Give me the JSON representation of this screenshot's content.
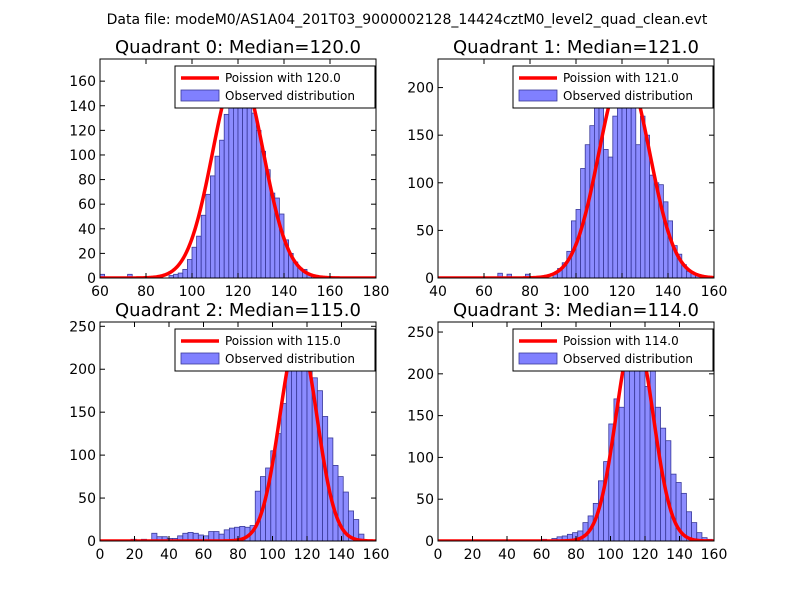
{
  "suptitle": "Data file: modeM0/AS1A04_201T03_9000002128_14424cztM0_level2_quad_clean.evt",
  "colors": {
    "line": "#ff0000",
    "bar": "#8080ff",
    "bar_edge": "#3a3a9a",
    "axes": "#000000"
  },
  "chart_data": [
    {
      "type": "bar",
      "title": "Quadrant 0: Median=120.0",
      "xlim": [
        60,
        180
      ],
      "ylim": [
        0,
        178
      ],
      "xticks": [
        60,
        80,
        100,
        120,
        140,
        160,
        180
      ],
      "yticks": [
        0,
        20,
        40,
        60,
        80,
        100,
        120,
        140,
        160
      ],
      "bin_width": 2,
      "legend": {
        "line_label": "Poission with 120.0",
        "bar_label": "Observed distribution",
        "position": "upper right"
      },
      "poisson": {
        "mean": 120.0,
        "peak": 170
      },
      "bins": [
        [
          60,
          3
        ],
        [
          72,
          3
        ],
        [
          84,
          1
        ],
        [
          90,
          2
        ],
        [
          92,
          3
        ],
        [
          94,
          4
        ],
        [
          96,
          7
        ],
        [
          98,
          15
        ],
        [
          100,
          25
        ],
        [
          102,
          34
        ],
        [
          104,
          51
        ],
        [
          106,
          68
        ],
        [
          108,
          83
        ],
        [
          110,
          99
        ],
        [
          112,
          112
        ],
        [
          114,
          133
        ],
        [
          116,
          150
        ],
        [
          118,
          155
        ],
        [
          120,
          170
        ],
        [
          122,
          143
        ],
        [
          124,
          150
        ],
        [
          126,
          134
        ],
        [
          128,
          120
        ],
        [
          130,
          103
        ],
        [
          132,
          88
        ],
        [
          134,
          69
        ],
        [
          136,
          65
        ],
        [
          138,
          52
        ],
        [
          140,
          31
        ],
        [
          142,
          20
        ],
        [
          144,
          13
        ],
        [
          146,
          8
        ],
        [
          148,
          7
        ],
        [
          150,
          3
        ],
        [
          152,
          2
        ],
        [
          154,
          1
        ],
        [
          160,
          1
        ]
      ]
    },
    {
      "type": "bar",
      "title": "Quadrant 1: Median=121.0",
      "xlim": [
        40,
        160
      ],
      "ylim": [
        0,
        230
      ],
      "xticks": [
        40,
        60,
        80,
        100,
        120,
        140,
        160
      ],
      "yticks": [
        0,
        50,
        100,
        150,
        200
      ],
      "bin_width": 2,
      "legend": {
        "line_label": "Poission with 121.0",
        "bar_label": "Observed distribution",
        "position": "upper right"
      },
      "poisson": {
        "mean": 121.0,
        "peak": 218
      },
      "bins": [
        [
          66,
          5
        ],
        [
          70,
          4
        ],
        [
          78,
          4
        ],
        [
          90,
          4
        ],
        [
          92,
          10
        ],
        [
          94,
          16
        ],
        [
          96,
          28
        ],
        [
          98,
          60
        ],
        [
          100,
          72
        ],
        [
          102,
          115
        ],
        [
          104,
          140
        ],
        [
          106,
          160
        ],
        [
          108,
          180
        ],
        [
          110,
          190
        ],
        [
          112,
          135
        ],
        [
          114,
          127
        ],
        [
          116,
          170
        ],
        [
          118,
          210
        ],
        [
          120,
          190
        ],
        [
          122,
          205
        ],
        [
          124,
          212
        ],
        [
          126,
          140
        ],
        [
          128,
          170
        ],
        [
          130,
          150
        ],
        [
          132,
          108
        ],
        [
          134,
          100
        ],
        [
          136,
          98
        ],
        [
          138,
          80
        ],
        [
          140,
          60
        ],
        [
          142,
          34
        ],
        [
          144,
          25
        ],
        [
          146,
          14
        ],
        [
          148,
          7
        ],
        [
          150,
          5
        ],
        [
          152,
          3
        ],
        [
          154,
          2
        ]
      ]
    },
    {
      "type": "bar",
      "title": "Quadrant 2: Median=115.0",
      "xlim": [
        0,
        160
      ],
      "ylim": [
        0,
        255
      ],
      "xticks": [
        0,
        20,
        40,
        60,
        80,
        100,
        120,
        140,
        160
      ],
      "yticks": [
        0,
        50,
        100,
        150,
        200,
        250
      ],
      "bin_width": 3,
      "legend": {
        "line_label": "Poission with 115.0",
        "bar_label": "Observed distribution",
        "position": "upper right"
      },
      "poisson": {
        "mean": 115.0,
        "peak": 240
      },
      "bins": [
        [
          12,
          1
        ],
        [
          18,
          2
        ],
        [
          24,
          2
        ],
        [
          30,
          9
        ],
        [
          33,
          5
        ],
        [
          36,
          5
        ],
        [
          39,
          3
        ],
        [
          42,
          3
        ],
        [
          45,
          6
        ],
        [
          48,
          9
        ],
        [
          51,
          10
        ],
        [
          54,
          9
        ],
        [
          57,
          7
        ],
        [
          60,
          6
        ],
        [
          63,
          11
        ],
        [
          66,
          11
        ],
        [
          69,
          8
        ],
        [
          72,
          13
        ],
        [
          75,
          15
        ],
        [
          78,
          16
        ],
        [
          81,
          17
        ],
        [
          84,
          16
        ],
        [
          87,
          18
        ],
        [
          90,
          58
        ],
        [
          93,
          75
        ],
        [
          96,
          85
        ],
        [
          99,
          105
        ],
        [
          102,
          125
        ],
        [
          105,
          160
        ],
        [
          108,
          220
        ],
        [
          111,
          235
        ],
        [
          114,
          240
        ],
        [
          117,
          245
        ],
        [
          120,
          210
        ],
        [
          123,
          190
        ],
        [
          126,
          175
        ],
        [
          129,
          145
        ],
        [
          132,
          120
        ],
        [
          135,
          88
        ],
        [
          138,
          75
        ],
        [
          141,
          57
        ],
        [
          144,
          35
        ],
        [
          147,
          25
        ],
        [
          150,
          8
        ]
      ]
    },
    {
      "type": "bar",
      "title": "Quadrant 3: Median=114.0",
      "xlim": [
        0,
        160
      ],
      "ylim": [
        0,
        262
      ],
      "xticks": [
        0,
        20,
        40,
        60,
        80,
        100,
        120,
        140,
        160
      ],
      "yticks": [
        0,
        50,
        100,
        150,
        200,
        250
      ],
      "bin_width": 3,
      "legend": {
        "line_label": "Poission with 114.0",
        "bar_label": "Observed distribution",
        "position": "upper right"
      },
      "poisson": {
        "mean": 114.0,
        "peak": 250
      },
      "bins": [
        [
          18,
          1
        ],
        [
          60,
          2
        ],
        [
          66,
          3
        ],
        [
          69,
          5
        ],
        [
          72,
          6
        ],
        [
          75,
          8
        ],
        [
          78,
          10
        ],
        [
          81,
          12
        ],
        [
          84,
          22
        ],
        [
          87,
          30
        ],
        [
          90,
          45
        ],
        [
          93,
          72
        ],
        [
          96,
          95
        ],
        [
          99,
          140
        ],
        [
          102,
          170
        ],
        [
          105,
          160
        ],
        [
          108,
          205
        ],
        [
          111,
          245
        ],
        [
          114,
          250
        ],
        [
          117,
          210
        ],
        [
          120,
          185
        ],
        [
          123,
          205
        ],
        [
          126,
          160
        ],
        [
          129,
          135
        ],
        [
          132,
          120
        ],
        [
          135,
          80
        ],
        [
          138,
          70
        ],
        [
          141,
          57
        ],
        [
          144,
          35
        ],
        [
          147,
          22
        ],
        [
          150,
          10
        ],
        [
          153,
          4
        ],
        [
          156,
          2
        ]
      ]
    }
  ]
}
